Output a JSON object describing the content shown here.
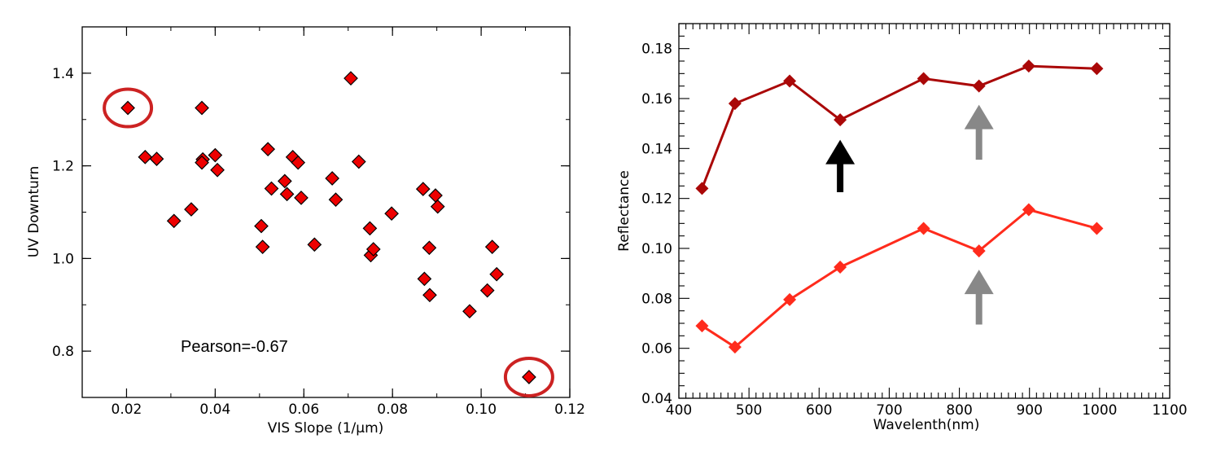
{
  "chart_data": [
    {
      "type": "scatter",
      "xlabel": "VIS Slope (1/μm)",
      "ylabel": "UV Downturn",
      "xlim": [
        0.01,
        0.12
      ],
      "ylim": [
        0.7,
        1.5
      ],
      "xticks": [
        0.02,
        0.04,
        0.06,
        0.08,
        0.1,
        0.12
      ],
      "xtick_labels": [
        "0.02",
        "0.04",
        "0.06",
        "0.08",
        "0.10",
        "0.12"
      ],
      "yticks": [
        0.8,
        1.0,
        1.2,
        1.4
      ],
      "ytick_labels": [
        "0.8",
        "1.0",
        "1.2",
        "1.4"
      ],
      "annotation": "Pearson=-0.67",
      "marker": "diamond",
      "marker_color": "#ee0000",
      "highlight_color": "#cc2222",
      "grid": false,
      "points": [
        {
          "x": 0.0203,
          "y": 1.325
        },
        {
          "x": 0.0242,
          "y": 1.219
        },
        {
          "x": 0.0268,
          "y": 1.215
        },
        {
          "x": 0.0307,
          "y": 1.081
        },
        {
          "x": 0.0346,
          "y": 1.106
        },
        {
          "x": 0.037,
          "y": 1.325
        },
        {
          "x": 0.0372,
          "y": 1.214
        },
        {
          "x": 0.037,
          "y": 1.207
        },
        {
          "x": 0.04,
          "y": 1.223
        },
        {
          "x": 0.0405,
          "y": 1.191
        },
        {
          "x": 0.0504,
          "y": 1.07
        },
        {
          "x": 0.0507,
          "y": 1.025
        },
        {
          "x": 0.0519,
          "y": 1.236
        },
        {
          "x": 0.0527,
          "y": 1.151
        },
        {
          "x": 0.0557,
          "y": 1.167
        },
        {
          "x": 0.0562,
          "y": 1.139
        },
        {
          "x": 0.0575,
          "y": 1.219
        },
        {
          "x": 0.0587,
          "y": 1.207
        },
        {
          "x": 0.0594,
          "y": 1.131
        },
        {
          "x": 0.0624,
          "y": 1.03
        },
        {
          "x": 0.0664,
          "y": 1.173
        },
        {
          "x": 0.0672,
          "y": 1.127
        },
        {
          "x": 0.0706,
          "y": 1.389
        },
        {
          "x": 0.0724,
          "y": 1.209
        },
        {
          "x": 0.0749,
          "y": 1.065
        },
        {
          "x": 0.0751,
          "y": 1.007
        },
        {
          "x": 0.0757,
          "y": 1.02
        },
        {
          "x": 0.0798,
          "y": 1.097
        },
        {
          "x": 0.0869,
          "y": 1.15
        },
        {
          "x": 0.0872,
          "y": 0.956
        },
        {
          "x": 0.0883,
          "y": 1.023
        },
        {
          "x": 0.0884,
          "y": 0.921
        },
        {
          "x": 0.0897,
          "y": 1.136
        },
        {
          "x": 0.0902,
          "y": 1.112
        },
        {
          "x": 0.0974,
          "y": 0.886
        },
        {
          "x": 0.1014,
          "y": 0.931
        },
        {
          "x": 0.1025,
          "y": 1.025
        },
        {
          "x": 0.1035,
          "y": 0.966
        },
        {
          "x": 0.1108,
          "y": 0.744
        }
      ],
      "highlighted_points": [
        {
          "x": 0.0203,
          "y": 1.325
        },
        {
          "x": 0.1108,
          "y": 0.744
        }
      ]
    },
    {
      "type": "line",
      "xlabel": "Wavelenth(nm)",
      "ylabel": "Reflectance",
      "xlim": [
        400,
        1100
      ],
      "ylim": [
        0.04,
        0.19
      ],
      "xticks": [
        400,
        500,
        600,
        700,
        800,
        900,
        1000,
        1100
      ],
      "xtick_labels": [
        "400",
        "500",
        "600",
        "700",
        "800",
        "900",
        "1000",
        "1100"
      ],
      "yticks": [
        0.04,
        0.06,
        0.08,
        0.1,
        0.12,
        0.14,
        0.16,
        0.18
      ],
      "ytick_labels": [
        "0.04",
        "0.06",
        "0.08",
        "0.10",
        "0.12",
        "0.14",
        "0.16",
        "0.18"
      ],
      "x_minor_step": 10,
      "y_minor_step": 0.005,
      "marker": "diamond",
      "grid": false,
      "x": [
        433,
        480,
        558,
        630,
        749,
        828,
        899,
        996
      ],
      "series": [
        {
          "color": "#aa0808",
          "values": [
            0.124,
            0.158,
            0.167,
            0.1515,
            0.168,
            0.165,
            0.173,
            0.172
          ]
        },
        {
          "color": "#ff2b1c",
          "values": [
            0.069,
            0.0605,
            0.0795,
            0.0925,
            0.108,
            0.099,
            0.1155,
            0.108
          ]
        }
      ],
      "arrows": [
        {
          "x": 630,
          "color": "#000000",
          "from": 0.1225,
          "to": 0.1435
        },
        {
          "x": 828,
          "color": "#888888",
          "from": 0.1355,
          "to": 0.1575
        },
        {
          "x": 828,
          "color": "#888888",
          "from": 0.0695,
          "to": 0.0915
        }
      ]
    }
  ]
}
